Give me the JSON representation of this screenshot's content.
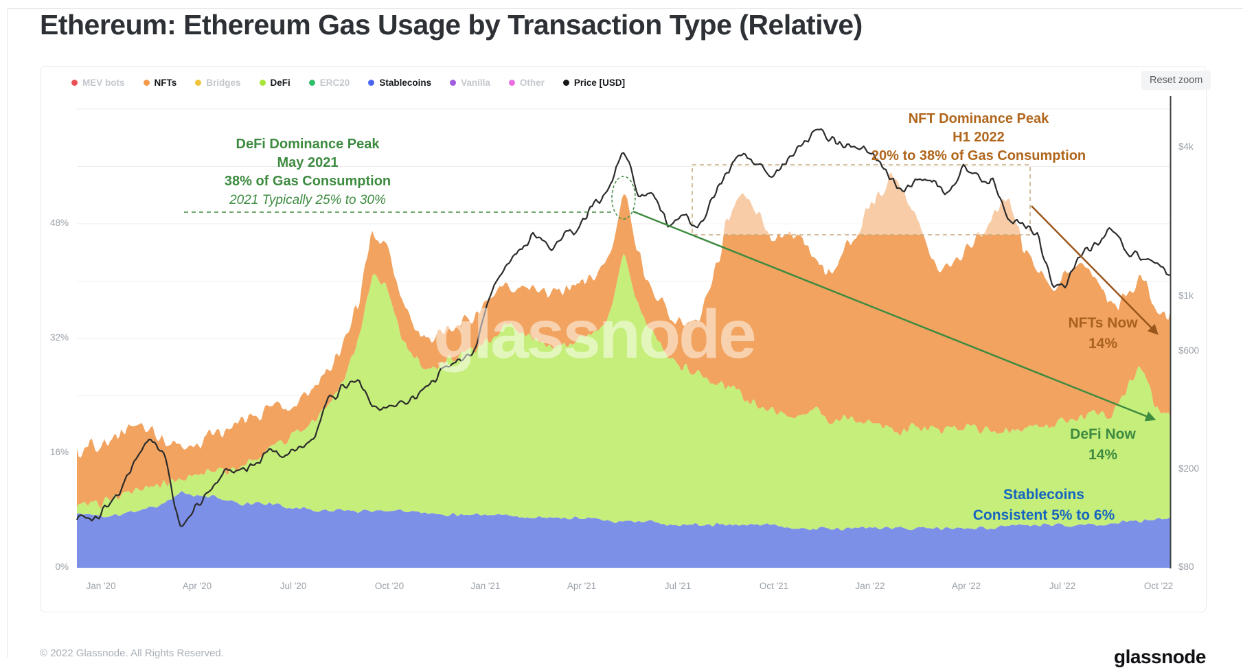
{
  "page": {
    "title": "Ethereum: Ethereum Gas Usage by Transaction Type (Relative)",
    "reset_zoom_label": "Reset zoom",
    "watermark": "glassnode",
    "footer_copyright": "© 2022 Glassnode. All Rights Reserved.",
    "brand_wordmark": "glassnode"
  },
  "legend": {
    "items": [
      {
        "label": "MEV bots",
        "color": "#ea5155",
        "active": false
      },
      {
        "label": "NFTs",
        "color": "#f2994a",
        "active": true
      },
      {
        "label": "Bridges",
        "color": "#f0c33c",
        "active": false
      },
      {
        "label": "DeFi",
        "color": "#a8e53a",
        "active": true
      },
      {
        "label": "ERC20",
        "color": "#2fbf6b",
        "active": false
      },
      {
        "label": "Stablecoins",
        "color": "#4a66f0",
        "active": true
      },
      {
        "label": "Vanilla",
        "color": "#a15ce0",
        "active": false
      },
      {
        "label": "Other",
        "color": "#ea6ee2",
        "active": false
      },
      {
        "label": "Price [USD]",
        "color": "#161616",
        "active": true
      }
    ],
    "active_text_color": "#15181c",
    "inactive_text_color": "#c3c8ce"
  },
  "chart_data": {
    "type": "area",
    "stacking": "percent",
    "title": "Ethereum: Ethereum Gas Usage by Transaction Type (Relative)",
    "x_ticks": [
      "Jan '20",
      "Apr '20",
      "Jul '20",
      "Oct '20",
      "Jan '21",
      "Apr '21",
      "Jul '21",
      "Oct '21",
      "Jan '22",
      "Apr '22",
      "Jul '22",
      "Oct '22"
    ],
    "y_left_ticks": [
      "48%",
      "32%",
      "16%",
      "0%"
    ],
    "y_left_values": [
      48,
      32,
      16,
      0
    ],
    "y_left_range": [
      0,
      66
    ],
    "grid_step_pct": 8,
    "y_right_ticks": [
      "$4k",
      "$1k",
      "$600",
      "$200",
      "$80"
    ],
    "y_right_values": [
      4000,
      1000,
      600,
      200,
      80
    ],
    "y_right_scale": "log",
    "legend_position": "top",
    "grid": true,
    "series": [
      {
        "name": "Stablecoins",
        "color": "#7d90e8",
        "values": [
          7.5,
          7.5,
          7,
          7.5,
          8,
          8.5,
          9,
          10.5,
          10,
          10,
          9.5,
          9,
          9,
          9,
          8.5,
          8.5,
          8,
          8,
          8,
          8,
          8,
          8,
          8,
          8,
          7.5,
          7.5,
          7.5,
          7.5,
          7.5,
          7.5,
          7,
          7,
          7,
          7,
          7,
          7,
          6.5,
          6.5,
          6.5,
          6.5,
          6,
          6,
          6,
          6,
          6,
          6,
          6,
          6,
          5.5,
          5.5,
          5.5,
          5.5,
          5.5,
          5.5,
          5.5,
          5.5,
          5.5,
          5.5,
          5.5,
          5.5,
          5.5,
          5.5,
          5.5,
          6,
          6,
          6,
          6,
          6,
          6,
          6,
          6,
          6.5,
          6.5,
          6.5,
          7
        ]
      },
      {
        "name": "DeFi",
        "color": "#c6ee7b",
        "values": [
          1.5,
          1.5,
          2,
          2.5,
          3,
          3,
          2.5,
          2.5,
          3,
          3.5,
          4,
          5,
          6,
          7.5,
          9,
          10.5,
          12.5,
          15,
          18,
          24,
          33,
          31,
          24,
          21,
          20,
          21,
          22,
          23,
          25,
          26,
          26,
          25,
          24,
          24,
          25,
          26,
          28,
          38,
          30,
          26,
          24,
          22,
          21,
          20,
          19,
          18,
          17,
          16,
          16,
          16,
          16,
          15,
          15,
          15,
          15,
          14,
          14,
          14,
          14,
          14,
          14,
          14,
          13,
          13,
          13,
          14,
          14,
          15,
          15,
          16,
          15,
          18,
          22,
          16,
          14
        ]
      },
      {
        "name": "NFTs",
        "color": "#f1a35f",
        "values": [
          7.5,
          8,
          8.5,
          9,
          9,
          8,
          6,
          4.5,
          4.5,
          5,
          5.5,
          6,
          6,
          5.5,
          5,
          4.5,
          4.5,
          5,
          5,
          5,
          6,
          5,
          4.5,
          4,
          4,
          4.5,
          4.5,
          4.5,
          5,
          5.5,
          6,
          7,
          7,
          7.5,
          8,
          8,
          8,
          8,
          7,
          6.5,
          6,
          6,
          7,
          14,
          23,
          29,
          27,
          24,
          26,
          24,
          22,
          20,
          24,
          27,
          31,
          35,
          33,
          28,
          24,
          22,
          24,
          27,
          30,
          33,
          26,
          22,
          18,
          20,
          22,
          18,
          15,
          13,
          12,
          14,
          14
        ]
      }
    ],
    "price_series": {
      "name": "Price [USD]",
      "color": "#2b2b2b",
      "unit": "USD",
      "values": [
        132,
        128,
        140,
        167,
        225,
        265,
        225,
        115,
        140,
        160,
        205,
        195,
        205,
        240,
        230,
        240,
        265,
        390,
        420,
        470,
        365,
        355,
        375,
        390,
        450,
        520,
        570,
        615,
        1050,
        1350,
        1520,
        1850,
        1550,
        1800,
        1920,
        2350,
        2700,
        4050,
        2600,
        2550,
        1950,
        2150,
        1900,
        2550,
        3150,
        3850,
        3400,
        2950,
        3550,
        4100,
        4700,
        4300,
        4100,
        3950,
        3750,
        3050,
        2700,
        3050,
        2900,
        2600,
        3300,
        3050,
        2850,
        2100,
        1950,
        1800,
        1100,
        1150,
        1500,
        1650,
        1900,
        1550,
        1430,
        1330,
        1250
      ]
    },
    "annotations": {
      "defi_peak": {
        "lines": [
          "DeFi Dominance Peak",
          "May 2021",
          "38% of Gas Consumption"
        ],
        "color": "#3d8b40"
      },
      "defi_peak_italic": {
        "text": "2021 Typically 25% to 30%",
        "color": "#3d8b40"
      },
      "nft_peak": {
        "lines": [
          "NFT Dominance Peak",
          "H1 2022",
          "20% to 38% of Gas Consumption"
        ],
        "color": "#b0661c"
      },
      "nfts_now": {
        "lines": [
          "NFTs Now",
          "14%"
        ],
        "color": "#a9611f"
      },
      "defi_now": {
        "lines": [
          "DeFi Now",
          "14%"
        ],
        "color": "#3d8b40"
      },
      "stablecoins_note": {
        "lines": [
          "Stablecoins",
          "Consistent 5% to 6%"
        ],
        "color": "#1565c0"
      },
      "arrow_defi_color": "#3d8b40",
      "arrow_nft_color": "#99551a",
      "highlight_rect_border": "#c9a87c"
    }
  }
}
